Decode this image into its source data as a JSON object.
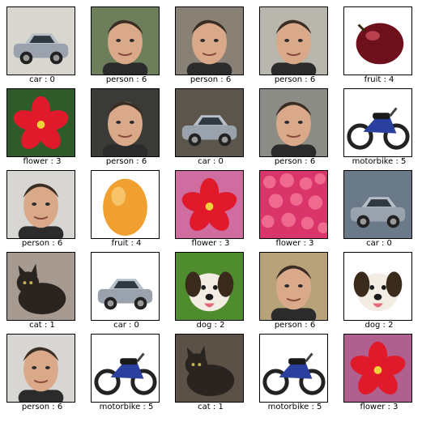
{
  "images": [
    {
      "label": "car : 0",
      "icon": "car-icon",
      "bg": "#d9d6cf"
    },
    {
      "label": "person : 6",
      "icon": "person-face-icon",
      "bg": "#6d7f5a"
    },
    {
      "label": "person : 6",
      "icon": "person-face-icon",
      "bg": "#8a8176"
    },
    {
      "label": "person : 6",
      "icon": "person-face-icon",
      "bg": "#b9b7ad"
    },
    {
      "label": "fruit : 4",
      "icon": "plum-icon",
      "bg": "#ffffff"
    },
    {
      "label": "flower : 3",
      "icon": "flower-icon",
      "bg": "#2f5b2b"
    },
    {
      "label": "person : 6",
      "icon": "person-face-icon",
      "bg": "#3a3a37"
    },
    {
      "label": "car : 0",
      "icon": "car-icon",
      "bg": "#5c554b"
    },
    {
      "label": "person : 6",
      "icon": "person-face-icon",
      "bg": "#8c8c86"
    },
    {
      "label": "motorbike : 5",
      "icon": "motorbike-icon",
      "bg": "#ffffff"
    },
    {
      "label": "person : 6",
      "icon": "person-face-icon",
      "bg": "#d8d6d2"
    },
    {
      "label": "fruit : 4",
      "icon": "orange-fruit-icon",
      "bg": "#ffffff"
    },
    {
      "label": "flower : 3",
      "icon": "flower-icon",
      "bg": "#d06da0"
    },
    {
      "label": "flower : 3",
      "icon": "flower-bed-icon",
      "bg": "#d9356b"
    },
    {
      "label": "car : 0",
      "icon": "car-icon",
      "bg": "#6b7a88"
    },
    {
      "label": "cat : 1",
      "icon": "cat-icon",
      "bg": "#a79a90"
    },
    {
      "label": "car : 0",
      "icon": "car-icon",
      "bg": "#ffffff"
    },
    {
      "label": "dog : 2",
      "icon": "dog-icon",
      "bg": "#4e8c2e"
    },
    {
      "label": "person : 6",
      "icon": "person-face-icon",
      "bg": "#b8a27a"
    },
    {
      "label": "dog : 2",
      "icon": "dog-icon",
      "bg": "#ffffff"
    },
    {
      "label": "person : 6",
      "icon": "person-face-icon",
      "bg": "#d8d6d2"
    },
    {
      "label": "motorbike : 5",
      "icon": "motorbike-icon",
      "bg": "#ffffff"
    },
    {
      "label": "cat : 1",
      "icon": "cat-icon",
      "bg": "#5b5147"
    },
    {
      "label": "motorbike : 5",
      "icon": "motorbike-icon",
      "bg": "#ffffff"
    },
    {
      "label": "flower : 3",
      "icon": "flower-icon",
      "bg": "#b0608e"
    }
  ]
}
